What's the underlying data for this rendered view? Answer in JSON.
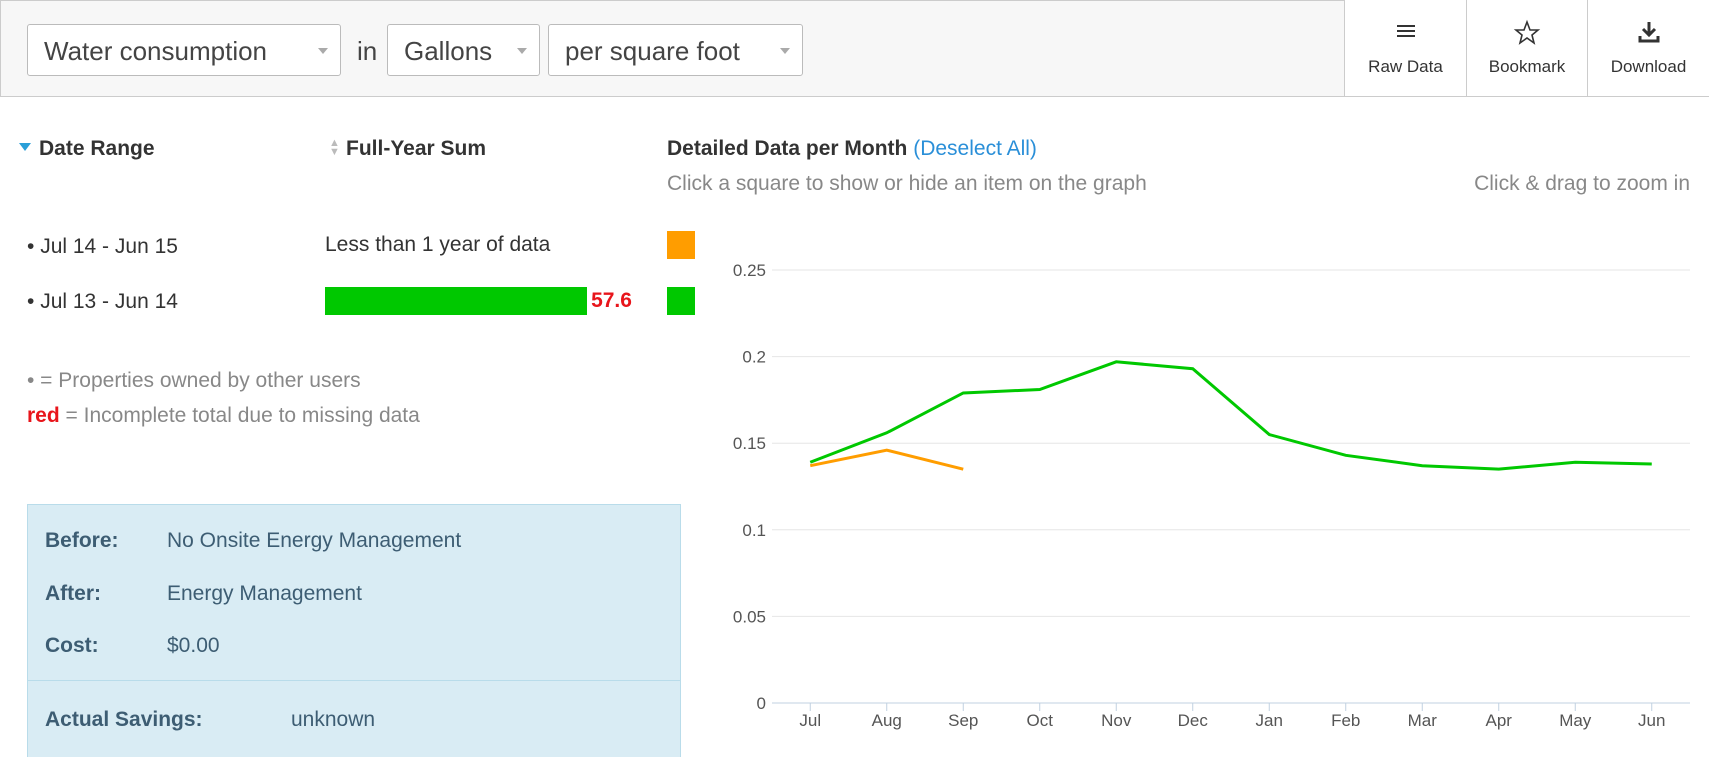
{
  "toolbar": {
    "metric": "Water consumption",
    "connector": "in",
    "unit": "Gallons",
    "normalization": "per square foot",
    "buttons": [
      "Raw Data",
      "Bookmark",
      "Download"
    ]
  },
  "table": {
    "headers": [
      "Date Range",
      "Full-Year Sum"
    ],
    "rows": [
      {
        "sum_text": "Less than 1 year of data"
      },
      {
        "sum": 57.6
      }
    ]
  },
  "notes": {
    "dot": "• = Properties owned by other users",
    "red_word": "red",
    "red": "= Incomplete total due to missing data"
  },
  "project": {
    "rows": [
      {
        "label": "Before:",
        "value": "No Onsite Energy Management"
      },
      {
        "label": "After:",
        "value": "Energy Management"
      },
      {
        "label": "Cost:",
        "value": "$0.00"
      }
    ],
    "savings": {
      "label": "Actual Savings:",
      "value": "unknown"
    }
  },
  "chart_data": {
    "type": "line",
    "title": "Detailed Data per Month",
    "action": "(Deselect All)",
    "subtitle": "Click a square to show or hide an item on the graph",
    "hint": "Click & drag to zoom in",
    "categories": [
      "Jul",
      "Aug",
      "Sep",
      "Oct",
      "Nov",
      "Dec",
      "Jan",
      "Feb",
      "Mar",
      "Apr",
      "May",
      "Jun"
    ],
    "series": [
      {
        "name": "Jul 14 - Jun 15",
        "color": "#ff9d00",
        "values": [
          0.137,
          0.146,
          0.135,
          null,
          null,
          null,
          null,
          null,
          null,
          null,
          null,
          null
        ]
      },
      {
        "name": "Jul 13 - Jun 14",
        "color": "#00c800",
        "values": [
          0.139,
          0.156,
          0.179,
          0.181,
          0.197,
          0.193,
          0.155,
          0.143,
          0.137,
          0.135,
          0.139,
          0.138
        ]
      }
    ],
    "ylim": [
      0,
      0.25
    ],
    "yticks": [
      0,
      0.05,
      0.1,
      0.15,
      0.2,
      0.25
    ],
    "grid": true
  }
}
